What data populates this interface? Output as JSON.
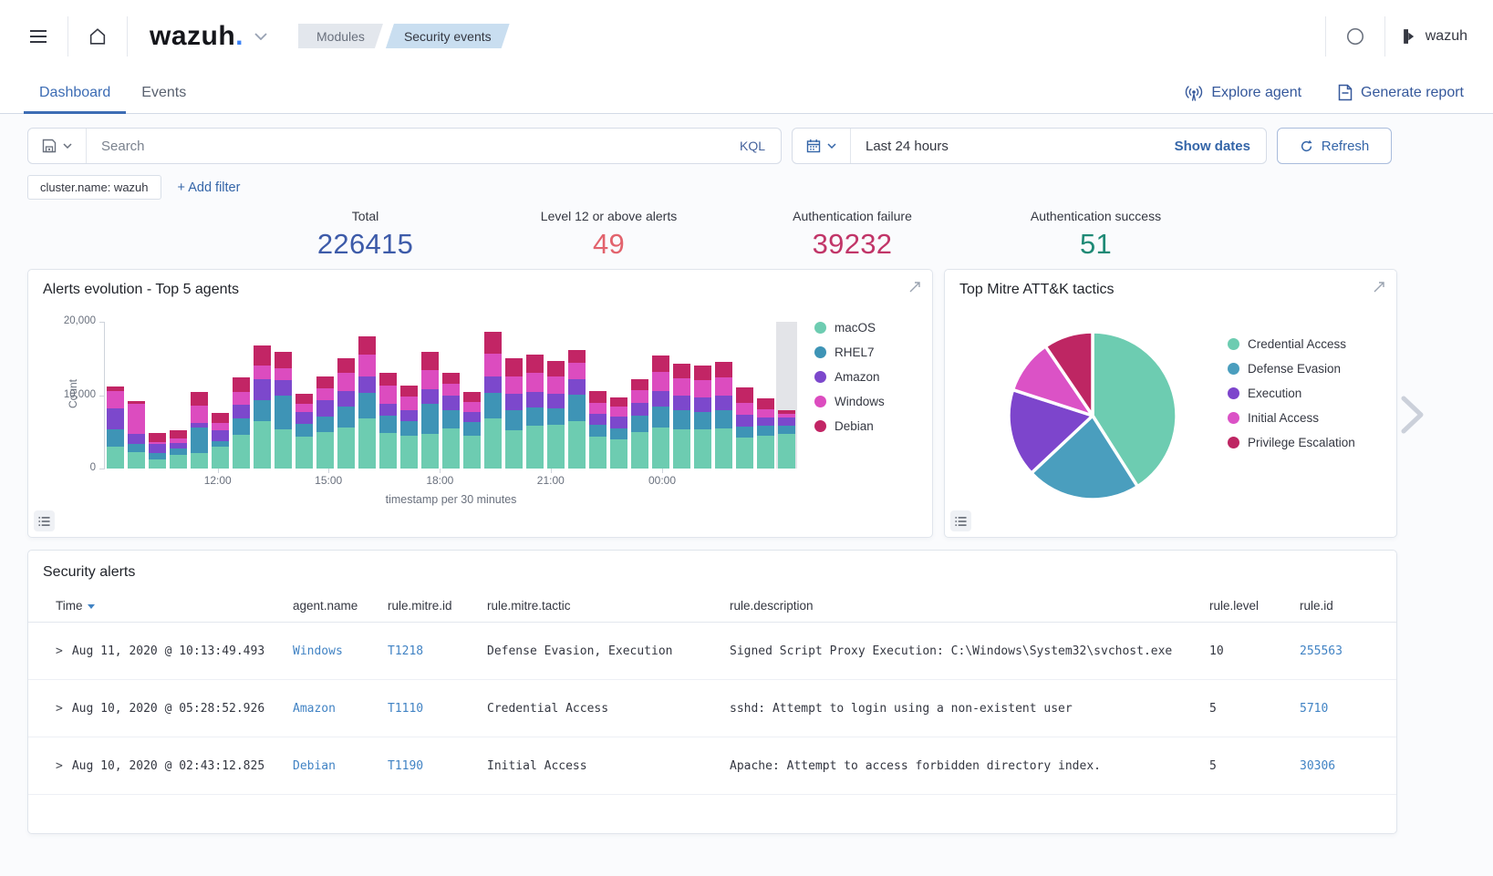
{
  "topbar": {
    "logo_text": "wazuh",
    "logo_dot": ".",
    "breadcrumbs": [
      {
        "label": "Modules",
        "variant": "inactive"
      },
      {
        "label": "Security events",
        "variant": "active"
      }
    ],
    "user_label": "wazuh"
  },
  "tabs": {
    "dashboard": "Dashboard",
    "events": "Events"
  },
  "header_actions": {
    "explore_agent": "Explore agent",
    "generate_report": "Generate report"
  },
  "search_bar": {
    "placeholder": "Search",
    "kql_label": "KQL",
    "time_range": "Last 24 hours",
    "show_dates_label": "Show dates",
    "refresh_label": "Refresh"
  },
  "filter_bar": {
    "chips": [
      "cluster.name: wazuh"
    ],
    "add_filter_label": "+ Add filter"
  },
  "stats": [
    {
      "label": "Total",
      "value": "226415",
      "color": "#3D5BA9"
    },
    {
      "label": "Level 12 or above alerts",
      "value": "49",
      "color": "#E2636D"
    },
    {
      "label": "Authentication failure",
      "value": "39232",
      "color": "#C13568"
    },
    {
      "label": "Authentication success",
      "value": "51",
      "color": "#1F8A76"
    }
  ],
  "panels": {
    "bar_panel_title": "Alerts evolution - Top 5 agents",
    "pie_panel_title": "Top Mitre ATT&K tactics",
    "table_panel_title": "Security alerts"
  },
  "chart_data": [
    {
      "type": "bar",
      "stacked": true,
      "title": "Alerts evolution - Top 5 agents",
      "xlabel": "timestamp per 30 minutes",
      "ylabel": "Count",
      "ylim": [
        0,
        20000
      ],
      "grid": false,
      "legend_position": "right",
      "bucket_minutes": 30,
      "last_bucket_highlighted": true,
      "y_ticks": [
        {
          "label": "0",
          "value": 0
        },
        {
          "label": "10,000",
          "value": 10000
        },
        {
          "label": "20,000",
          "value": 20000
        }
      ],
      "x_ticks": [
        {
          "label": "12:00",
          "pct": 16.3
        },
        {
          "label": "15:00",
          "pct": 32.3
        },
        {
          "label": "18:00",
          "pct": 48.4
        },
        {
          "label": "21:00",
          "pct": 64.4
        },
        {
          "label": "00:00",
          "pct": 80.5
        }
      ],
      "series": [
        {
          "name": "macOS",
          "color": "#6DCCB1",
          "values": [
            3000,
            2300,
            1200,
            1900,
            2100,
            3000,
            4600,
            6500,
            5400,
            4400,
            5000,
            5600,
            6900,
            4800,
            4500,
            4700,
            5500,
            4500,
            6800,
            5200,
            5800,
            6000,
            6500,
            4300,
            4000,
            5000,
            5600,
            5400,
            5300,
            5500,
            4200,
            4500,
            4700
          ]
        },
        {
          "name": "RHEL7",
          "color": "#3E94B6",
          "values": [
            2400,
            1100,
            900,
            900,
            3500,
            700,
            2200,
            2800,
            4500,
            1700,
            2100,
            2800,
            3400,
            2400,
            2000,
            4100,
            2500,
            1800,
            3500,
            2800,
            2500,
            2200,
            3600,
            1700,
            1500,
            2200,
            2800,
            2500,
            2400,
            2500,
            1500,
            1300,
            1200
          ]
        },
        {
          "name": "Amazon",
          "color": "#7C48CC",
          "values": [
            2800,
            1300,
            1200,
            700,
            600,
            1500,
            1900,
            2900,
            2200,
            1600,
            2200,
            2200,
            2200,
            1600,
            1400,
            2000,
            1900,
            1400,
            2200,
            2200,
            2200,
            2000,
            2100,
            1400,
            1600,
            1800,
            2200,
            2000,
            2000,
            2000,
            1600,
            1200,
            1000
          ]
        },
        {
          "name": "Windows",
          "color": "#DC4CBF",
          "values": [
            2400,
            4100,
            300,
            600,
            2400,
            1000,
            1800,
            1800,
            1600,
            1100,
            1600,
            2500,
            3000,
            2500,
            1900,
            2600,
            1600,
            1400,
            3200,
            2300,
            2500,
            2300,
            2200,
            1500,
            1300,
            1700,
            2600,
            2400,
            2300,
            2400,
            1700,
            1100,
            600
          ]
        },
        {
          "name": "Debian",
          "color": "#C22565",
          "values": [
            600,
            400,
            1200,
            1100,
            1800,
            1400,
            1900,
            2800,
            2200,
            1400,
            1600,
            1900,
            2500,
            1800,
            1500,
            2500,
            1500,
            1300,
            3000,
            2500,
            2500,
            2200,
            1800,
            1700,
            1300,
            1500,
            2200,
            2000,
            2000,
            2100,
            2000,
            1500,
            500
          ]
        }
      ]
    },
    {
      "type": "pie",
      "title": "Top Mitre ATT&K tactics",
      "labels": [
        "Credential Access",
        "Defense Evasion",
        "Execution",
        "Initial Access",
        "Privilege Escalation"
      ],
      "values": [
        41,
        22,
        17,
        10.5,
        9.5
      ],
      "unit": "percent",
      "colors": [
        "#6DCCB1",
        "#4A9EBE",
        "#7D45CC",
        "#DB52C6",
        "#BE2663"
      ],
      "legend_position": "right",
      "start_angle_deg": -90,
      "direction": "clockwise"
    }
  ],
  "alerts_table": {
    "columns": [
      "Time",
      "agent.name",
      "rule.mitre.id",
      "rule.mitre.tactic",
      "rule.description",
      "rule.level",
      "rule.id"
    ],
    "sorted_column": "Time",
    "sort_direction": "desc",
    "rows": [
      {
        "time": "Aug 11, 2020 @ 10:13:49.493",
        "agent_name": "Windows",
        "mitre_id": "T1218",
        "mitre_tactic": "Defense Evasion, Execution",
        "description": "Signed Script Proxy Execution: C:\\Windows\\System32\\svchost.exe",
        "level": "10",
        "rule_id": "255563"
      },
      {
        "time": "Aug 10, 2020 @ 05:28:52.926",
        "agent_name": "Amazon",
        "mitre_id": "T1110",
        "mitre_tactic": "Credential Access",
        "description": "sshd: Attempt to login using a non-existent user",
        "level": "5",
        "rule_id": "5710"
      },
      {
        "time": "Aug 10, 2020 @ 02:43:12.825",
        "agent_name": "Debian",
        "mitre_id": "T1190",
        "mitre_tactic": "Initial Access",
        "description": "Apache: Attempt to access forbidden directory index.",
        "level": "5",
        "rule_id": "30306"
      }
    ]
  }
}
